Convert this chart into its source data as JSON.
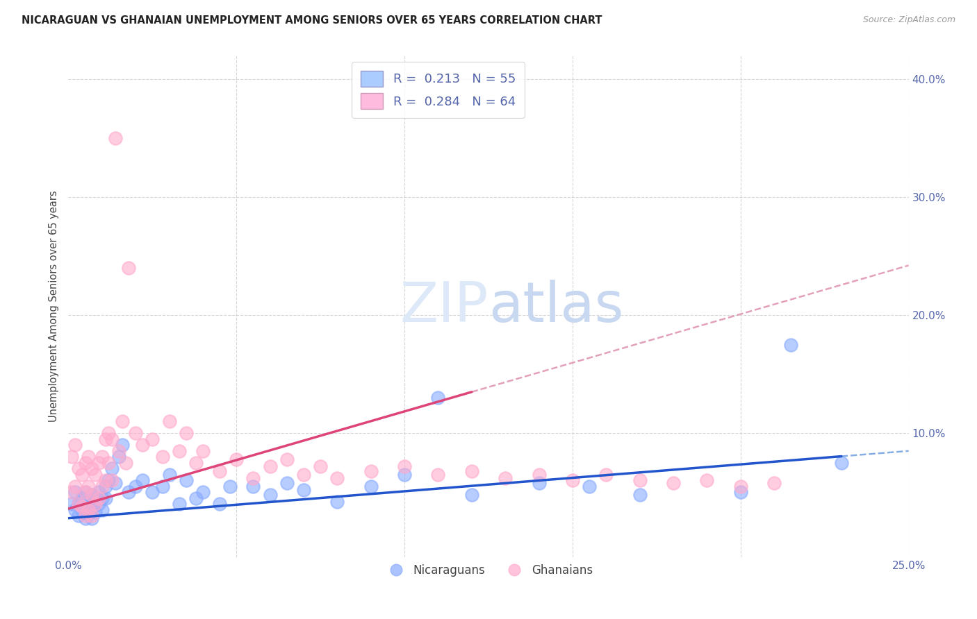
{
  "title": "NICARAGUAN VS GHANAIAN UNEMPLOYMENT AMONG SENIORS OVER 65 YEARS CORRELATION CHART",
  "source": "Source: ZipAtlas.com",
  "ylabel": "Unemployment Among Seniors over 65 years",
  "xlim": [
    0.0,
    0.25
  ],
  "ylim": [
    -0.005,
    0.42
  ],
  "grid_color": "#cccccc",
  "background_color": "#ffffff",
  "blue_scatter_color": "#88aaff",
  "pink_scatter_color": "#ffaacc",
  "blue_line_color": "#2255cc",
  "pink_line_color": "#dd4477",
  "pink_dash_color": "#dd88aa",
  "blue_dash_color": "#6699dd",
  "R_blue": 0.213,
  "N_blue": 55,
  "R_pink": 0.284,
  "N_pink": 64,
  "watermark_color": "#dde8f8",
  "tick_color": "#5566aa",
  "nicaraguan_x": [
    0.001,
    0.002,
    0.002,
    0.003,
    0.003,
    0.004,
    0.004,
    0.005,
    0.005,
    0.005,
    0.006,
    0.006,
    0.007,
    0.007,
    0.007,
    0.008,
    0.008,
    0.009,
    0.009,
    0.01,
    0.01,
    0.011,
    0.011,
    0.012,
    0.013,
    0.014,
    0.015,
    0.016,
    0.018,
    0.02,
    0.022,
    0.025,
    0.028,
    0.03,
    0.033,
    0.035,
    0.038,
    0.04,
    0.045,
    0.048,
    0.055,
    0.06,
    0.065,
    0.07,
    0.08,
    0.09,
    0.1,
    0.11,
    0.12,
    0.14,
    0.155,
    0.17,
    0.2,
    0.215,
    0.23
  ],
  "nicaraguan_y": [
    0.04,
    0.035,
    0.05,
    0.04,
    0.03,
    0.045,
    0.035,
    0.05,
    0.038,
    0.028,
    0.042,
    0.032,
    0.048,
    0.038,
    0.028,
    0.043,
    0.033,
    0.05,
    0.04,
    0.045,
    0.035,
    0.055,
    0.045,
    0.06,
    0.07,
    0.058,
    0.08,
    0.09,
    0.05,
    0.055,
    0.06,
    0.05,
    0.055,
    0.065,
    0.04,
    0.06,
    0.045,
    0.05,
    0.04,
    0.055,
    0.055,
    0.048,
    0.058,
    0.052,
    0.042,
    0.055,
    0.065,
    0.13,
    0.048,
    0.058,
    0.055,
    0.048,
    0.05,
    0.175,
    0.075
  ],
  "ghanaian_x": [
    0.001,
    0.001,
    0.002,
    0.002,
    0.003,
    0.003,
    0.004,
    0.004,
    0.005,
    0.005,
    0.005,
    0.006,
    0.006,
    0.006,
    0.007,
    0.007,
    0.007,
    0.008,
    0.008,
    0.009,
    0.009,
    0.01,
    0.01,
    0.011,
    0.011,
    0.012,
    0.012,
    0.013,
    0.013,
    0.014,
    0.015,
    0.016,
    0.017,
    0.018,
    0.02,
    0.022,
    0.025,
    0.028,
    0.03,
    0.033,
    0.035,
    0.038,
    0.04,
    0.045,
    0.05,
    0.055,
    0.06,
    0.065,
    0.07,
    0.075,
    0.08,
    0.09,
    0.1,
    0.11,
    0.12,
    0.13,
    0.14,
    0.15,
    0.16,
    0.17,
    0.18,
    0.19,
    0.2,
    0.21
  ],
  "ghanaian_y": [
    0.08,
    0.05,
    0.09,
    0.055,
    0.07,
    0.04,
    0.065,
    0.038,
    0.075,
    0.05,
    0.03,
    0.08,
    0.055,
    0.035,
    0.07,
    0.048,
    0.03,
    0.065,
    0.04,
    0.075,
    0.045,
    0.08,
    0.055,
    0.095,
    0.06,
    0.1,
    0.075,
    0.095,
    0.06,
    0.35,
    0.085,
    0.11,
    0.075,
    0.24,
    0.1,
    0.09,
    0.095,
    0.08,
    0.11,
    0.085,
    0.1,
    0.075,
    0.085,
    0.068,
    0.078,
    0.062,
    0.072,
    0.078,
    0.065,
    0.072,
    0.062,
    0.068,
    0.072,
    0.065,
    0.068,
    0.062,
    0.065,
    0.06,
    0.065,
    0.06,
    0.058,
    0.06,
    0.055,
    0.058
  ]
}
